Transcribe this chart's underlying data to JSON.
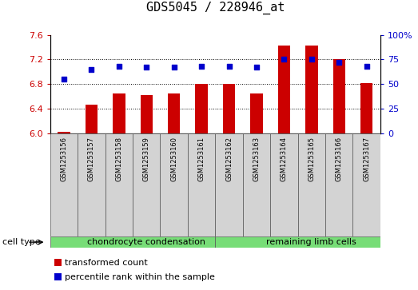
{
  "title": "GDS5045 / 228946_at",
  "samples": [
    "GSM1253156",
    "GSM1253157",
    "GSM1253158",
    "GSM1253159",
    "GSM1253160",
    "GSM1253161",
    "GSM1253162",
    "GSM1253163",
    "GSM1253164",
    "GSM1253165",
    "GSM1253166",
    "GSM1253167"
  ],
  "transformed_count": [
    6.02,
    6.46,
    6.65,
    6.62,
    6.65,
    6.8,
    6.8,
    6.65,
    7.42,
    7.42,
    7.2,
    6.82
  ],
  "percentile_rank": [
    55,
    65,
    68,
    67,
    67,
    68,
    68,
    67,
    75,
    75,
    72,
    68
  ],
  "ylim_left": [
    6.0,
    7.6
  ],
  "ylim_right": [
    0,
    100
  ],
  "yticks_left": [
    6.0,
    6.4,
    6.8,
    7.2,
    7.6
  ],
  "yticks_right": [
    0,
    25,
    50,
    75,
    100
  ],
  "bar_color": "#cc0000",
  "dot_color": "#0000cc",
  "bar_bottom": 6.0,
  "gridlines_at": [
    6.4,
    6.8,
    7.2
  ],
  "cell_types": [
    {
      "label": "chondrocyte condensation",
      "start": 0,
      "end": 6
    },
    {
      "label": "remaining limb cells",
      "start": 6,
      "end": 12
    }
  ],
  "cell_type_label": "cell type",
  "cell_green": "#77dd77",
  "sample_box_gray": "#d3d3d3",
  "legend_items": [
    {
      "color": "#cc0000",
      "label": "transformed count"
    },
    {
      "color": "#0000cc",
      "label": "percentile rank within the sample"
    }
  ],
  "tick_color_left": "#cc0000",
  "tick_color_right": "#0000cc",
  "title_fontsize": 11,
  "tick_fontsize": 8,
  "sample_fontsize": 6,
  "legend_fontsize": 8,
  "cell_type_fontsize": 8,
  "cell_label_fontsize": 8
}
